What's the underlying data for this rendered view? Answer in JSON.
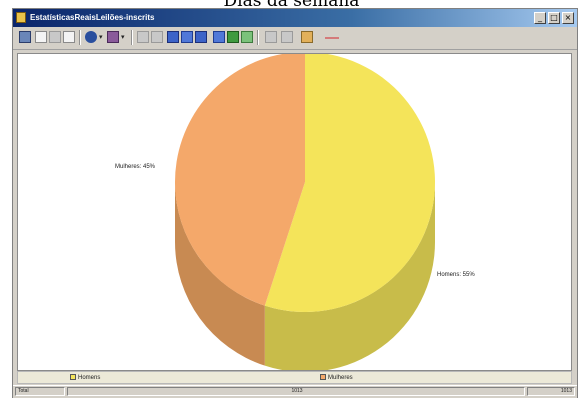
{
  "page_title": "Dias da semana",
  "window": {
    "title": "EstatísticasReaisLeilões-inscrits",
    "buttons": [
      "_",
      "□",
      "×"
    ]
  },
  "toolbar": {
    "icons": [
      "find-icon",
      "copy-icon",
      "print-preview-icon",
      "print-icon",
      "chart-type-icon",
      "color-icon",
      "grid-icon",
      "axis-icon",
      "view-icon",
      "view2-icon",
      "view3-icon",
      "legend-icon",
      "add-icon",
      "check-icon",
      "undo-icon",
      "redo-icon",
      "pencil-icon",
      "line-style-icon"
    ]
  },
  "chart_data": {
    "type": "pie",
    "title": "EstatísticasReaisLeilões-inscrits",
    "slices": [
      {
        "name": "Homens",
        "label": "Homens: 55%",
        "value": 55,
        "color": "#f4e45a",
        "side_color": "#c8bc4a"
      },
      {
        "name": "Mulheres",
        "label": "Mulheres: 45%",
        "value": 45,
        "color": "#f4a86a",
        "side_color": "#c88a52"
      }
    ],
    "legend_position": "bottom"
  },
  "status": {
    "left": "Total",
    "middle": "1013",
    "right": "1013"
  }
}
